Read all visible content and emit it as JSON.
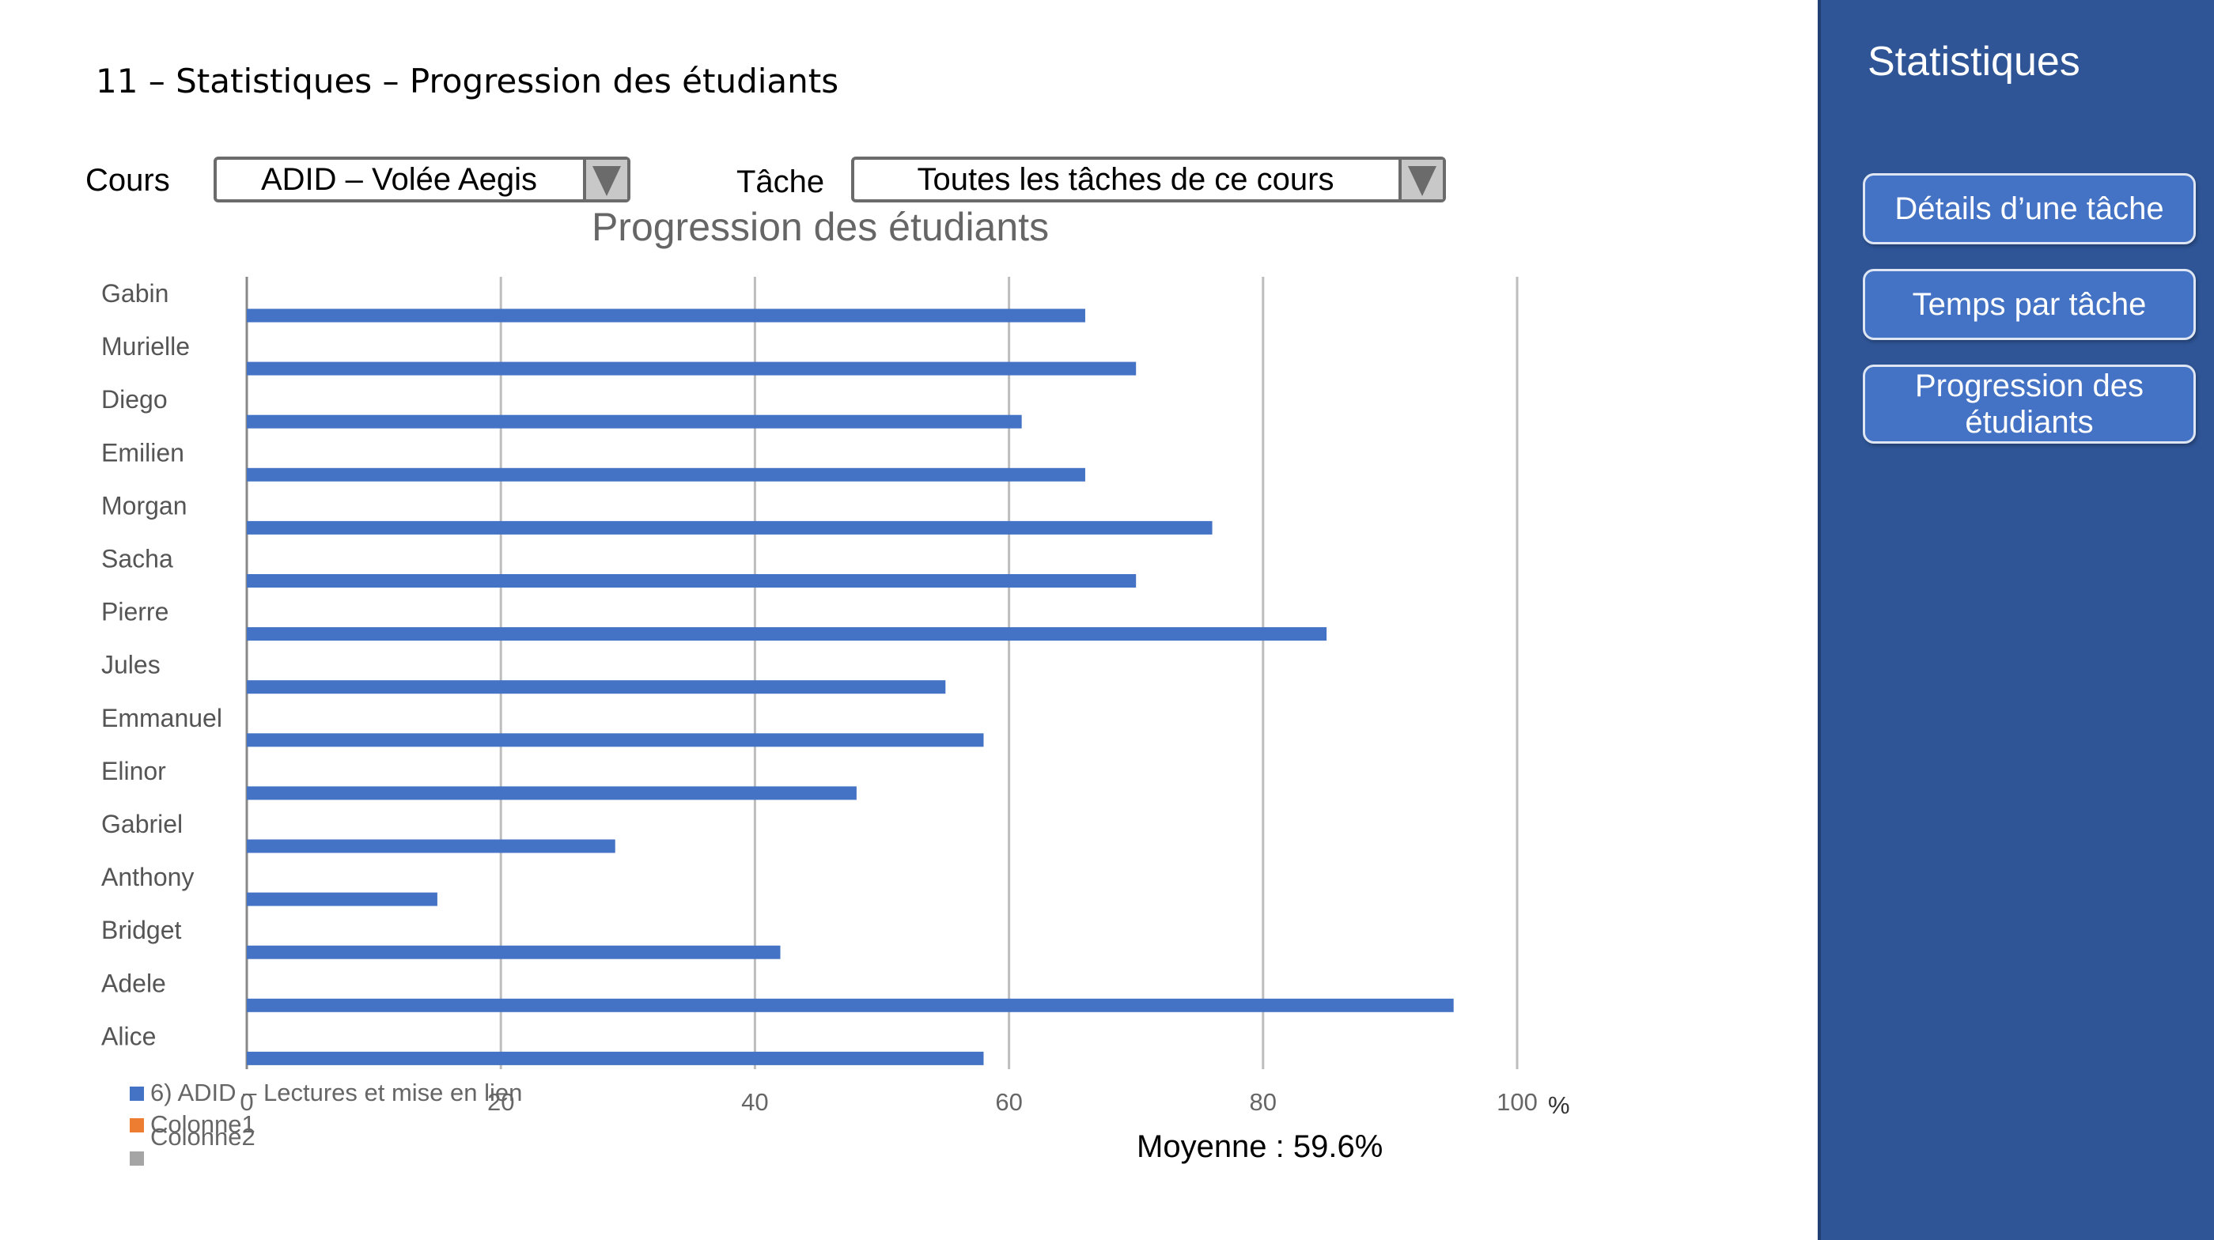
{
  "page": {
    "title": "11 – Statistiques – Progression des étudiants"
  },
  "filters": {
    "course_label": "Cours",
    "course_value": "ADID – Volée Aegis",
    "task_label": "Tâche",
    "task_value": "Toutes les tâches de ce cours"
  },
  "chart_data": {
    "type": "bar",
    "orientation": "horizontal",
    "title": "Progression des étudiants",
    "categories": [
      "Gabin",
      "Murielle",
      "Diego",
      "Emilien",
      "Morgan",
      "Sacha",
      "Pierre",
      "Jules",
      "Emmanuel",
      "Elinor",
      "Gabriel",
      "Anthony",
      "Bridget",
      "Adele",
      "Alice"
    ],
    "series": [
      {
        "name": "6)  ADID – Lectures et mise en lien",
        "color": "#4472c4",
        "values": [
          66,
          70,
          61,
          66,
          76,
          70,
          85,
          55,
          58,
          48,
          29,
          15,
          42,
          95,
          58
        ]
      }
    ],
    "xlim": [
      0,
      100
    ],
    "xticks": [
      "0",
      "20",
      "40",
      "60",
      "80",
      "100"
    ],
    "xunit": "%",
    "grid": true,
    "legend_position": "bottom-left",
    "legend": [
      {
        "name": "6)  ADID – Lectures et mise en lien",
        "color": "#4472c4"
      },
      {
        "name": "Colonne1",
        "color": "#ed7d31"
      },
      {
        "name": "Colonne2",
        "color": "#a5a5a5"
      }
    ]
  },
  "summary": {
    "average": "Moyenne : 59.6%"
  },
  "sidebar": {
    "title": "Statistiques",
    "buttons": [
      "Détails d’une tâche",
      "Temps par tâche",
      "Progression des étudiants"
    ]
  }
}
